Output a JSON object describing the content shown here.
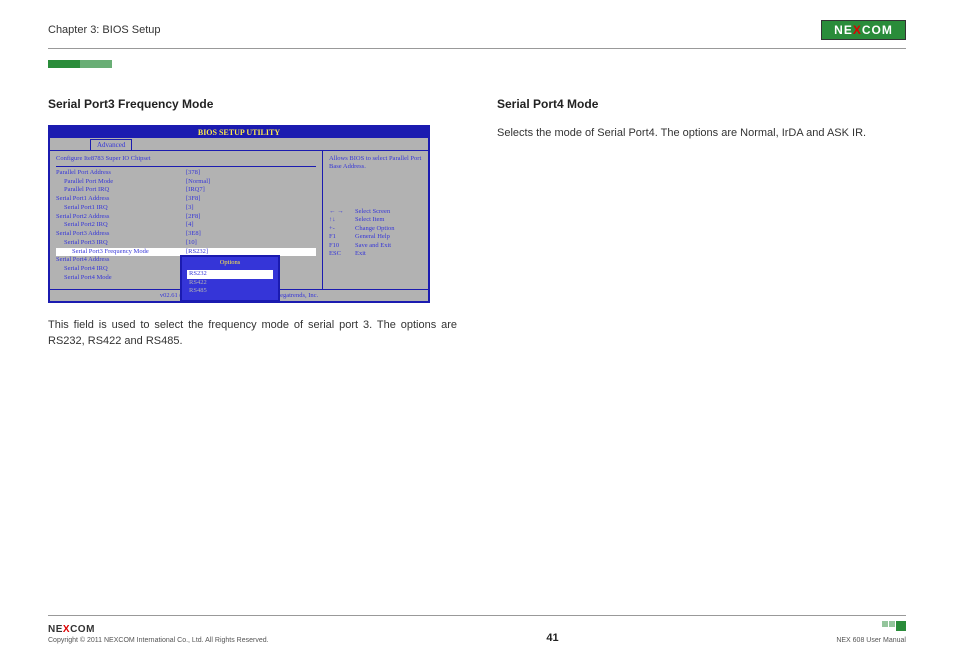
{
  "header": {
    "chapter": "Chapter 3: BIOS Setup",
    "logo": "NEXCOM"
  },
  "left": {
    "title": "Serial Port3 Frequency Mode",
    "body": "This field is used to select the frequency mode of serial port 3. The options are RS232, RS422 and RS485."
  },
  "right": {
    "title": "Serial Port4 Mode",
    "body": "Selects the mode of Serial Port4. The options are Normal, IrDA and ASK IR."
  },
  "bios": {
    "title": "BIOS SETUP UTILITY",
    "tab": "Advanced",
    "subtitle": "Configure Ite8783 Super IO Chipset",
    "rows": [
      {
        "label": "Parallel Port Address",
        "val": "[378]",
        "indent": 0
      },
      {
        "label": "Parallel Port Mode",
        "val": "[Normal]",
        "indent": 1
      },
      {
        "label": "Parallel Port IRQ",
        "val": "[IRQ7]",
        "indent": 1
      },
      {
        "label": "Serial Port1 Address",
        "val": "[3F8]",
        "indent": 0
      },
      {
        "label": "Serial Port1 IRQ",
        "val": "[3]",
        "indent": 1
      },
      {
        "label": "Serial Port2 Address",
        "val": "[2F8]",
        "indent": 0
      },
      {
        "label": "Serial Port2 IRQ",
        "val": "[4]",
        "indent": 1
      },
      {
        "label": "Serial Port3 Address",
        "val": "[3E8]",
        "indent": 0
      },
      {
        "label": "Serial Port3 IRQ",
        "val": "[10]",
        "indent": 1
      },
      {
        "label": "Serial Port3 Frequency Mode",
        "val": "[RS232]",
        "indent": 2,
        "sel": true
      },
      {
        "label": "Serial Port4 Address",
        "val": "",
        "indent": 0
      },
      {
        "label": "Serial Port4 IRQ",
        "val": "",
        "indent": 1
      },
      {
        "label": "Serial Port4 Mode",
        "val": "",
        "indent": 1
      }
    ],
    "popup": {
      "title": "Options",
      "options": [
        {
          "label": "RS232",
          "sel": true
        },
        {
          "label": "RS422",
          "sel": false
        },
        {
          "label": "RS485",
          "sel": false
        }
      ]
    },
    "help": "Allows BIOS to select Parallel Port Base Address.",
    "nav": [
      {
        "key": "← →",
        "desc": "Select Screen"
      },
      {
        "key": "↑↓",
        "desc": "Select Item"
      },
      {
        "key": "+-",
        "desc": "Change Option"
      },
      {
        "key": "F1",
        "desc": "General Help"
      },
      {
        "key": "F10",
        "desc": "Save and Exit"
      },
      {
        "key": "ESC",
        "desc": "Exit"
      }
    ],
    "footer": "v02.61 (C)Copyright 1985-2006, American Megatrends, Inc."
  },
  "footer": {
    "logo": "NEXCOM",
    "copyright": "Copyright © 2011 NEXCOM International Co., Ltd. All Rights Reserved.",
    "page": "41",
    "manual": "NEX 608 User Manual"
  }
}
